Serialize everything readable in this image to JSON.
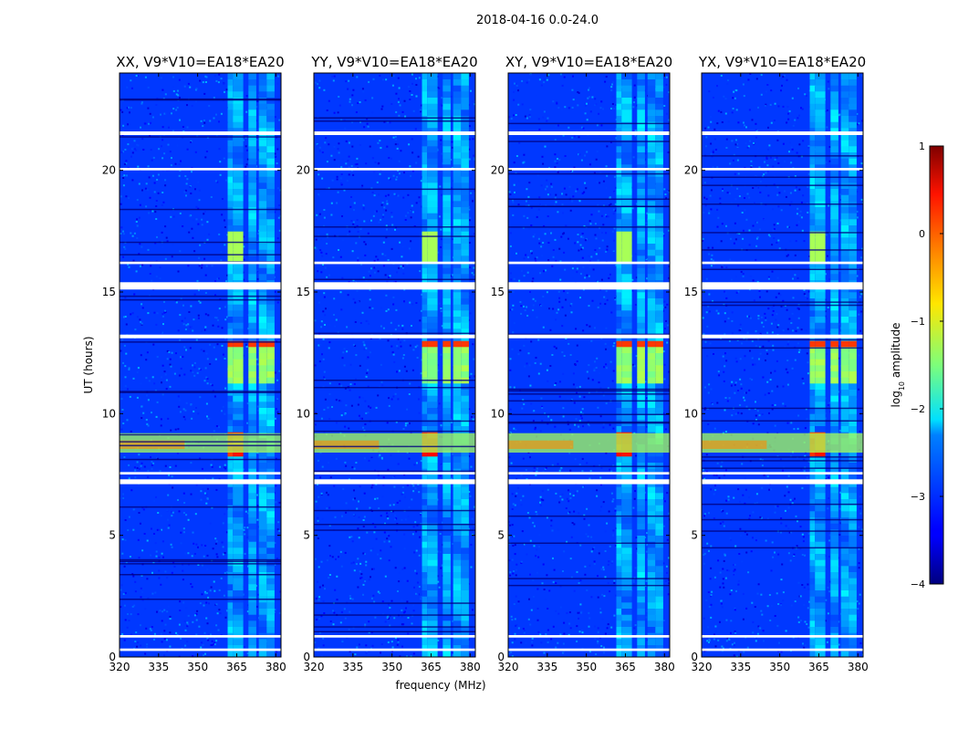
{
  "figure": {
    "suptitle": "2018-04-16 0.0-24.0",
    "xlabel": "frequency (MHz)",
    "ylabel": "UT (hours)"
  },
  "chart_data": {
    "type": "heatmap",
    "title": "2018-04-16 0.0-24.0",
    "xlabel": "frequency (MHz)",
    "ylabel": "UT (hours)",
    "xlim": [
      320,
      382
    ],
    "ylim": [
      0,
      24
    ],
    "xticks": [
      "320",
      "335",
      "350",
      "365",
      "380"
    ],
    "xtick_values": [
      320,
      335,
      350,
      365,
      380
    ],
    "yticks": [
      "0",
      "5",
      "10",
      "15",
      "20"
    ],
    "ytick_values": [
      0,
      5,
      10,
      15,
      20
    ],
    "panels": [
      {
        "title": "XX, V9*V10=EA18*EA20",
        "pol": "XX"
      },
      {
        "title": "YY, V9*V10=EA18*EA20",
        "pol": "YY"
      },
      {
        "title": "XY, V9*V10=EA18*EA20",
        "pol": "XY"
      },
      {
        "title": "YX, V9*V10=EA18*EA20",
        "pol": "YX"
      }
    ],
    "features": {
      "background_log_amp": -3.1,
      "rfi_bands_mhz": [
        [
          361.5,
          363.5
        ],
        [
          363.5,
          367.5
        ],
        [
          369.5,
          372.5
        ],
        [
          373.5,
          376.5
        ],
        [
          376.5,
          379.5
        ]
      ],
      "strong_rfi_hours": [
        [
          8.2,
          9.2
        ],
        [
          12.8,
          13.1
        ]
      ],
      "broadband_event_hours": [
        8.4,
        9.2
      ],
      "flagged_gap_hours": [
        [
          0.25,
          0.35
        ],
        [
          0.8,
          0.9
        ],
        [
          7.1,
          7.3
        ],
        [
          7.5,
          7.6
        ],
        [
          13.1,
          13.25
        ],
        [
          15.1,
          15.4
        ],
        [
          16.15,
          16.25
        ],
        [
          20.0,
          20.1
        ],
        [
          21.45,
          21.6
        ]
      ]
    },
    "colorbar": {
      "label": "log10 amplitude",
      "range": [
        -4,
        1
      ],
      "ticks": [
        "1",
        "0",
        "−1",
        "−2",
        "−3",
        "−4"
      ],
      "tick_values": [
        1,
        0,
        -1,
        -2,
        -3,
        -4
      ],
      "colormap": "jet"
    }
  }
}
